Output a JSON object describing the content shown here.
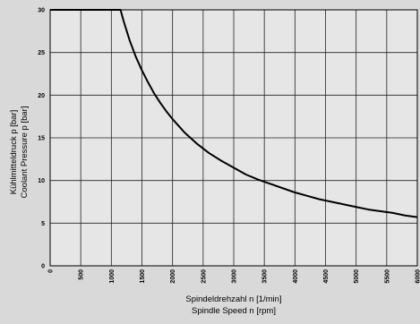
{
  "chart_data": {
    "type": "line",
    "xlabel": [
      "Spindeldrehzahl n [1/min]",
      "Spindle Speed n [rpm]"
    ],
    "ylabel": [
      "Kühlmitteldruck p [bar]",
      "Coolant Pressure p [bar]"
    ],
    "xlim": [
      0,
      6000
    ],
    "ylim": [
      0,
      30
    ],
    "x_ticks": [
      0,
      500,
      1000,
      1500,
      2000,
      2500,
      3000,
      3500,
      4000,
      4500,
      5000,
      5500,
      6000
    ],
    "y_ticks": [
      0,
      5,
      10,
      15,
      20,
      25,
      30
    ],
    "grid": true,
    "series": [
      {
        "color": "#000000",
        "x": [
          0,
          1150,
          1200,
          1300,
          1400,
          1500,
          1600,
          1700,
          1800,
          1900,
          2000,
          2200,
          2400,
          2600,
          2800,
          3000,
          3200,
          3400,
          3600,
          3800,
          4000,
          4200,
          4400,
          4600,
          4800,
          5000,
          5200,
          5400,
          5600,
          5800,
          6000
        ],
        "y": [
          30,
          30,
          28.7,
          26.4,
          24.5,
          22.9,
          21.5,
          20.2,
          19.1,
          18.1,
          17.2,
          15.6,
          14.3,
          13.2,
          12.3,
          11.5,
          10.7,
          10.1,
          9.6,
          9.1,
          8.6,
          8.2,
          7.8,
          7.5,
          7.2,
          6.9,
          6.6,
          6.4,
          6.2,
          5.9,
          5.7
        ]
      }
    ]
  }
}
